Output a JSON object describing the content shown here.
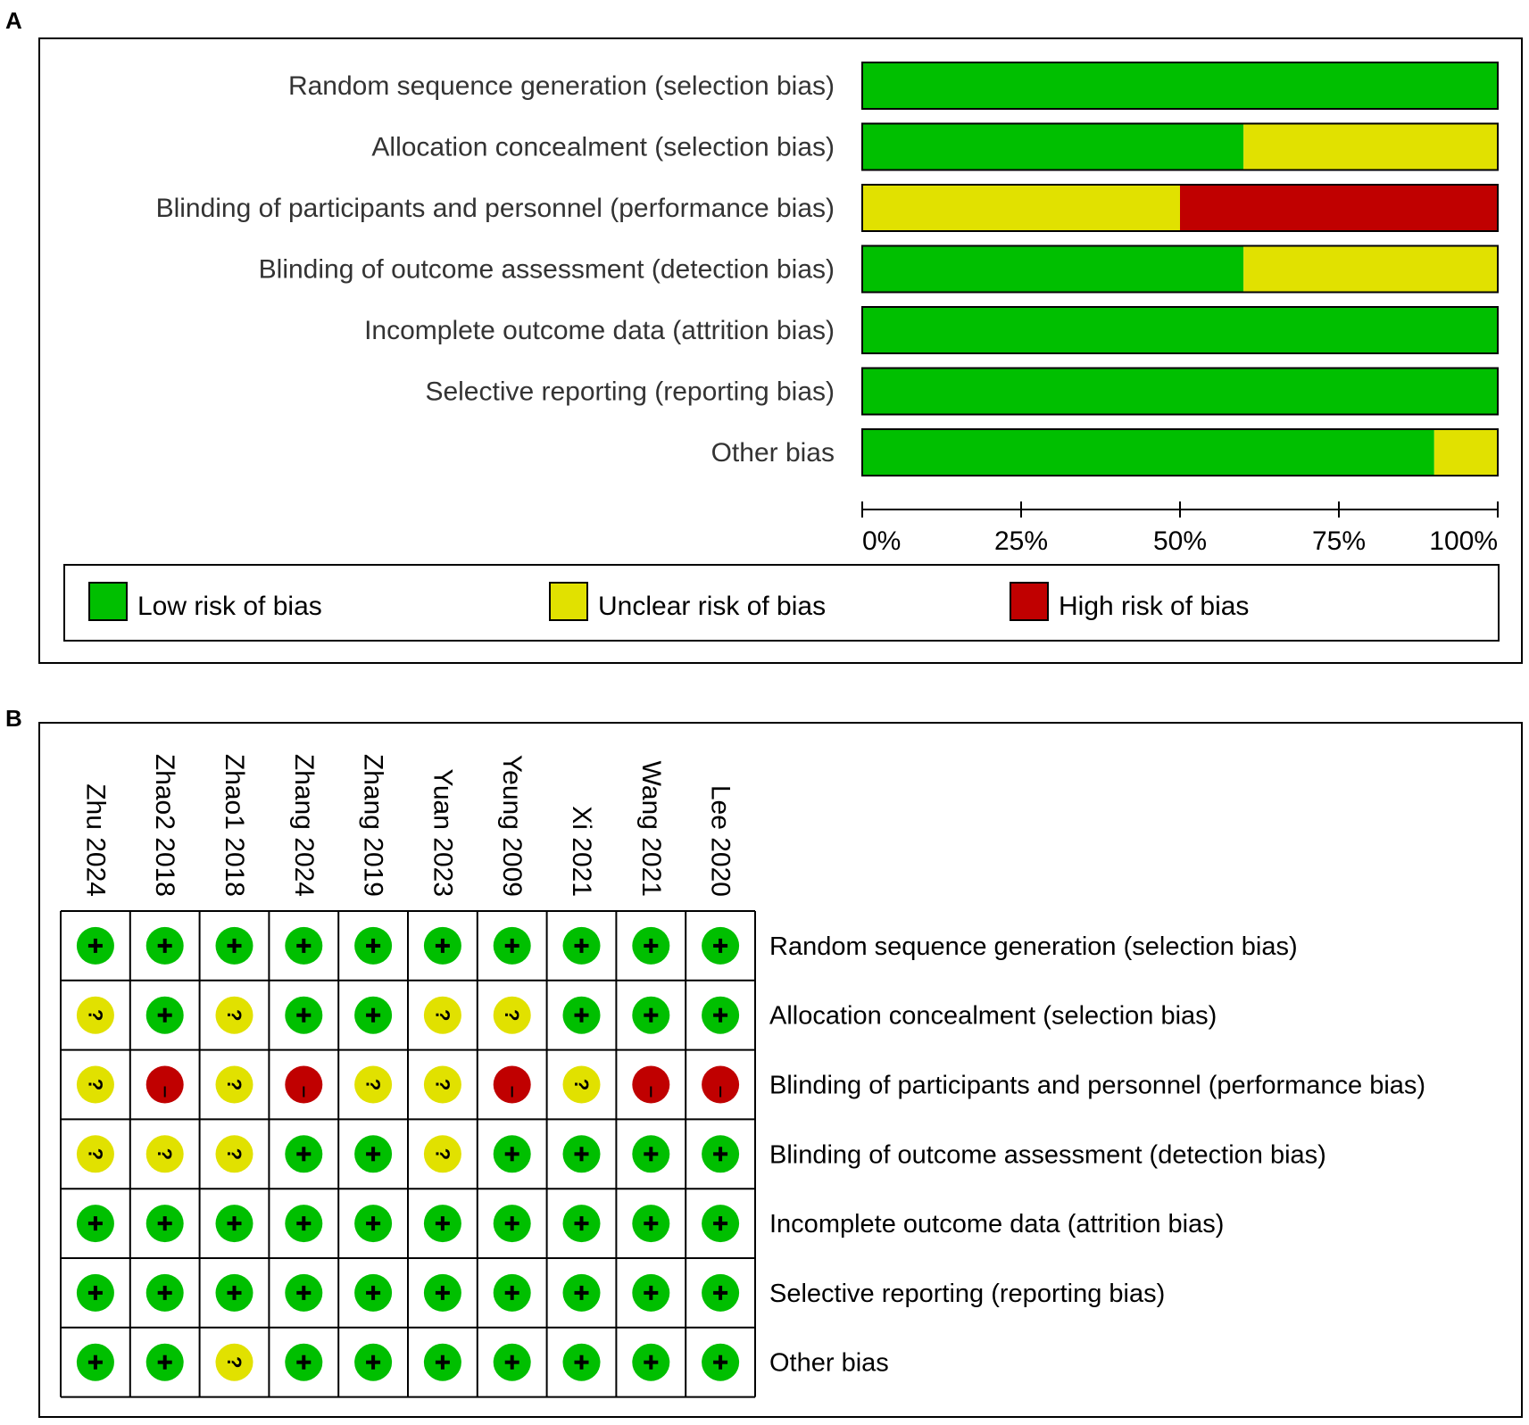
{
  "colors": {
    "low": "#00bf00",
    "unclear": "#e1e100",
    "high": "#c00000"
  },
  "chart_data": [
    {
      "panel": "A",
      "type": "bar",
      "orientation": "horizontal",
      "stacked": true,
      "categories": [
        "Random sequence generation (selection bias)",
        "Allocation concealment (selection bias)",
        "Blinding of participants and personnel (performance bias)",
        "Blinding of outcome assessment (detection bias)",
        "Incomplete outcome data (attrition bias)",
        "Selective reporting (reporting bias)",
        "Other bias"
      ],
      "series": [
        {
          "name": "Low risk of bias",
          "key": "low",
          "values": [
            100,
            60,
            0,
            60,
            100,
            100,
            90
          ]
        },
        {
          "name": "Unclear risk of bias",
          "key": "unclear",
          "values": [
            0,
            40,
            50,
            40,
            0,
            0,
            10
          ]
        },
        {
          "name": "High risk of bias",
          "key": "high",
          "values": [
            0,
            0,
            50,
            0,
            0,
            0,
            0
          ]
        }
      ],
      "xlim": [
        0,
        100
      ],
      "xticks": [
        "0%",
        "25%",
        "50%",
        "75%",
        "100%"
      ],
      "legend": [
        "Low risk of bias",
        "Unclear risk of bias",
        "High risk of bias"
      ],
      "legend_position": "bottom"
    },
    {
      "panel": "B",
      "type": "table",
      "studies": [
        "Zhu 2024",
        "Zhao2 2018",
        "Zhao1 2018",
        "Zhang 2024",
        "Zhang 2019",
        "Yuan 2023",
        "Yeung 2009",
        "Xi 2021",
        "Wang 2021",
        "Lee 2020"
      ],
      "domains": [
        "Random sequence generation (selection bias)",
        "Allocation concealment (selection bias)",
        "Blinding of participants and personnel (performance bias)",
        "Blinding of outcome assessment (detection bias)",
        "Incomplete outcome data (attrition bias)",
        "Selective reporting (reporting bias)",
        "Other bias"
      ],
      "judgements": [
        [
          "+",
          "+",
          "+",
          "+",
          "+",
          "+",
          "+",
          "+",
          "+",
          "+"
        ],
        [
          "?",
          "+",
          "?",
          "+",
          "+",
          "?",
          "?",
          "+",
          "+",
          "+"
        ],
        [
          "?",
          "-",
          "?",
          "-",
          "?",
          "?",
          "-",
          "?",
          "-",
          "-"
        ],
        [
          "?",
          "?",
          "?",
          "+",
          "+",
          "?",
          "+",
          "+",
          "+",
          "+"
        ],
        [
          "+",
          "+",
          "+",
          "+",
          "+",
          "+",
          "+",
          "+",
          "+",
          "+"
        ],
        [
          "+",
          "+",
          "+",
          "+",
          "+",
          "+",
          "+",
          "+",
          "+",
          "+"
        ],
        [
          "+",
          "+",
          "?",
          "+",
          "+",
          "+",
          "+",
          "+",
          "+",
          "+"
        ]
      ]
    }
  ],
  "panel_labels": {
    "a": "A",
    "b": "B"
  }
}
